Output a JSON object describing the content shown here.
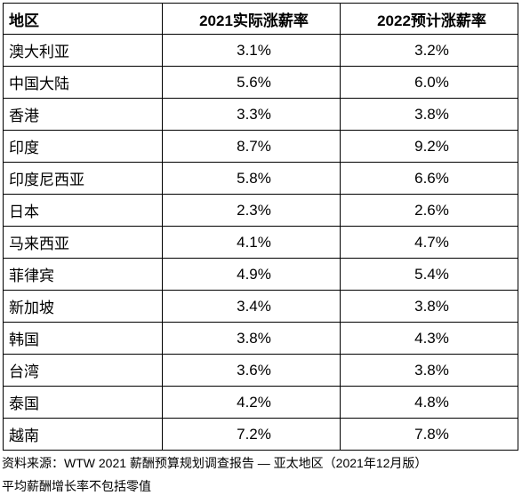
{
  "table": {
    "headers": {
      "region": "地区",
      "actual_2021": "2021实际涨薪率",
      "forecast_2022": "2022预计涨薪率"
    },
    "rows": [
      {
        "region": "澳大利亚",
        "actual_2021": "3.1%",
        "forecast_2022": "3.2%"
      },
      {
        "region": "中国大陆",
        "actual_2021": "5.6%",
        "forecast_2022": "6.0%"
      },
      {
        "region": "香港",
        "actual_2021": "3.3%",
        "forecast_2022": "3.8%"
      },
      {
        "region": "印度",
        "actual_2021": "8.7%",
        "forecast_2022": "9.2%"
      },
      {
        "region": "印度尼西亚",
        "actual_2021": "5.8%",
        "forecast_2022": "6.6%"
      },
      {
        "region": "日本",
        "actual_2021": "2.3%",
        "forecast_2022": "2.6%"
      },
      {
        "region": "马来西亚",
        "actual_2021": "4.1%",
        "forecast_2022": "4.7%"
      },
      {
        "region": "菲律宾",
        "actual_2021": "4.9%",
        "forecast_2022": "5.4%"
      },
      {
        "region": "新加坡",
        "actual_2021": "3.4%",
        "forecast_2022": "3.8%"
      },
      {
        "region": "韩国",
        "actual_2021": "3.8%",
        "forecast_2022": "4.3%"
      },
      {
        "region": "台湾",
        "actual_2021": "3.6%",
        "forecast_2022": "3.8%"
      },
      {
        "region": "泰国",
        "actual_2021": "4.2%",
        "forecast_2022": "4.8%"
      },
      {
        "region": "越南",
        "actual_2021": "7.2%",
        "forecast_2022": "7.8%"
      }
    ]
  },
  "footnotes": {
    "source": "资料来源：WTW 2021 薪酬预算规划调查报告 — 亚太地区（2021年12月版）",
    "note": "平均薪酬增长率不包括零值"
  }
}
